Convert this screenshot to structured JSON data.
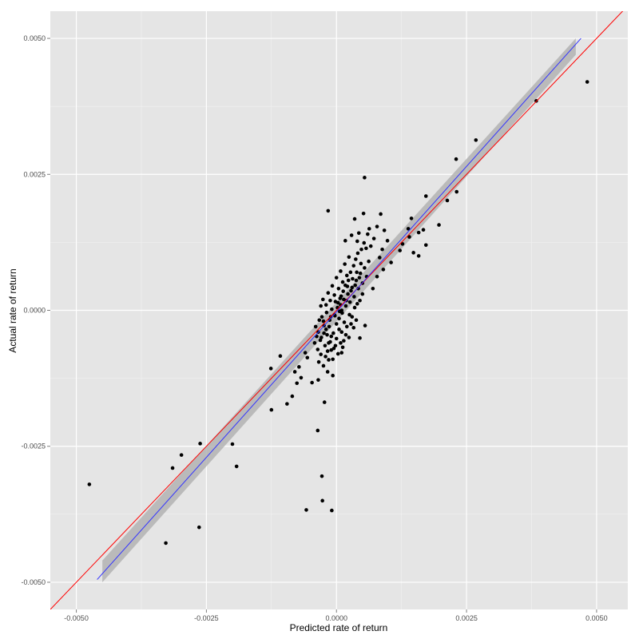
{
  "chart_data": {
    "type": "scatter",
    "title": "",
    "xlabel": "Predicted rate of return",
    "ylabel": "Actual rate of return",
    "xlim": [
      -0.0055,
      0.0056
    ],
    "ylim": [
      -0.0055,
      0.0055
    ],
    "x_ticks": [
      -0.005,
      -0.0025,
      0.0,
      0.0025,
      0.005
    ],
    "x_tick_labels": [
      "-0.0050",
      "-0.0025",
      "0.0000",
      "0.0025",
      "0.0050"
    ],
    "y_ticks": [
      -0.005,
      -0.0025,
      0.0,
      0.0025,
      0.005
    ],
    "y_tick_labels": [
      "-0.0050",
      "-0.0025",
      "0.0000",
      "0.0025",
      "0.0050"
    ],
    "grid": true,
    "reference_line": {
      "slope": 1,
      "intercept": 0,
      "color": "#ff0000"
    },
    "fit_line": {
      "x": [
        -0.0046,
        0.0047
      ],
      "y": [
        -0.00495,
        0.005
      ],
      "color": "#3333ff",
      "band_color": "#b3b3b3",
      "band": [
        {
          "x": -0.0045,
          "lower": -0.005,
          "upper": -0.0046
        },
        {
          "x": 0.0046,
          "lower": 0.0047,
          "upper": 0.005
        }
      ]
    },
    "points": [
      [
        -0.00475,
        -0.0032
      ],
      [
        -0.00328,
        -0.00428
      ],
      [
        -0.00315,
        -0.0029
      ],
      [
        -0.00298,
        -0.00266
      ],
      [
        -0.00264,
        -0.00399
      ],
      [
        -0.00262,
        -0.00245
      ],
      [
        -0.002,
        -0.00246
      ],
      [
        -0.00192,
        -0.00287
      ],
      [
        -0.00125,
        -0.00183
      ],
      [
        -0.00126,
        -0.00107
      ],
      [
        -0.00108,
        -0.00084
      ],
      [
        -0.00095,
        -0.00172
      ],
      [
        -0.00085,
        -0.00158
      ],
      [
        -0.00076,
        -0.00134
      ],
      [
        -0.00068,
        -0.00124
      ],
      [
        -0.0008,
        -0.00113
      ],
      [
        -0.00072,
        -0.00104
      ],
      [
        -0.0006,
        -0.00078
      ],
      [
        -0.00056,
        -0.00087
      ],
      [
        -0.00047,
        -0.00133
      ],
      [
        -0.00035,
        -0.00128
      ],
      [
        -0.00034,
        -0.00095
      ],
      [
        -0.0003,
        -0.00081
      ],
      [
        -0.00025,
        -0.00102
      ],
      [
        -0.00023,
        -0.00169
      ],
      [
        -0.00017,
        -0.00113
      ],
      [
        -0.00015,
        -0.00091
      ],
      [
        -0.0001,
        -0.00073
      ],
      [
        -7e-05,
        -0.0012
      ],
      [
        -0.00058,
        -0.00367
      ],
      [
        -0.00036,
        -0.00221
      ],
      [
        -0.00028,
        -0.00305
      ],
      [
        -0.00027,
        -0.0035
      ],
      [
        -9e-05,
        -0.00368
      ],
      [
        0.0001,
        -0.00078
      ],
      [
        0.00014,
        -0.00056
      ],
      [
        0.00045,
        -0.00051
      ],
      [
        0.00055,
        -0.00028
      ],
      [
        -0.00042,
        -0.0006
      ],
      [
        -0.00038,
        -0.00048
      ],
      [
        -0.0004,
        -0.0003
      ],
      [
        -0.00035,
        -0.0004
      ],
      [
        -0.00031,
        -0.00055
      ],
      [
        -0.00025,
        -0.0002
      ],
      [
        -0.00022,
        -0.00065
      ],
      [
        -0.00018,
        -0.00045
      ],
      [
        -0.00014,
        -0.0003
      ],
      [
        -0.00011,
        -0.00012
      ],
      [
        -6e-05,
        -0.00042
      ],
      [
        -4e-05,
        -8e-05
      ],
      [
        0.0,
        -0.00025
      ],
      [
        2e-05,
        5e-05
      ],
      [
        5e-05,
        -0.00015
      ],
      [
        8e-05,
        0.0001
      ],
      [
        0.00011,
        -5e-05
      ],
      [
        0.00014,
        0.0002
      ],
      [
        0.00018,
        8e-05
      ],
      [
        0.00022,
        0.0003
      ],
      [
        0.00026,
        0.00015
      ],
      [
        0.0003,
        0.00042
      ],
      [
        0.00034,
        0.00025
      ],
      [
        0.00038,
        0.00055
      ],
      [
        0.00042,
        0.0004
      ],
      [
        0.00046,
        0.00068
      ],
      [
        0.0005,
        0.0005
      ],
      [
        0.00054,
        0.00078
      ],
      [
        0.00058,
        0.00062
      ],
      [
        0.00062,
        0.0009
      ],
      [
        -0.0003,
        8e-05
      ],
      [
        -0.00026,
        0.0002
      ],
      [
        -0.0002,
        0.0001
      ],
      [
        -0.00016,
        0.00032
      ],
      [
        -0.00012,
        0.00018
      ],
      [
        -8e-05,
        0.00045
      ],
      [
        -4e-05,
        0.00028
      ],
      [
        0.0,
        0.0006
      ],
      [
        4e-05,
        0.0004
      ],
      [
        8e-05,
        0.00072
      ],
      [
        0.00012,
        0.00052
      ],
      [
        0.00016,
        0.00085
      ],
      [
        0.0002,
        0.00064
      ],
      [
        0.00024,
        0.00098
      ],
      [
        -0.0002,
        -0.00035
      ],
      [
        -0.00015,
        -0.0006
      ],
      [
        -0.0001,
        -0.00048
      ],
      [
        -5e-05,
        -0.0007
      ],
      [
        0.0,
        -0.00052
      ],
      [
        5e-05,
        -0.00035
      ],
      [
        0.0001,
        -0.0004
      ],
      [
        0.00015,
        -0.00022
      ],
      [
        0.0002,
        -0.0003
      ],
      [
        0.00025,
        -8e-05
      ],
      [
        0.0003,
        -0.00012
      ],
      [
        0.00035,
        5e-05
      ],
      [
        0.0004,
        0.00012
      ],
      [
        0.00045,
        0.00018
      ],
      [
        0.0005,
        0.0003
      ],
      [
        -0.00028,
        -0.00012
      ],
      [
        -0.00024,
        -0.00028
      ],
      [
        -0.00019,
        -4e-05
      ],
      [
        -0.00013,
        -0.00018
      ],
      [
        -9e-05,
        2e-05
      ],
      [
        -3e-05,
        -0.0001
      ],
      [
        3e-05,
        0.00014
      ],
      [
        7e-05,
        0.00022
      ],
      [
        0.00013,
        0.00035
      ],
      [
        0.00017,
        0.00046
      ],
      [
        0.00023,
        0.00055
      ],
      [
        0.00027,
        0.0007
      ],
      [
        0.00033,
        0.00082
      ],
      [
        0.00037,
        0.00094
      ],
      [
        0.00041,
        0.00105
      ],
      [
        0.00048,
        0.00112
      ],
      [
        0.00053,
        0.00124
      ],
      [
        0.0006,
        0.0014
      ],
      [
        0.00066,
        0.00118
      ],
      [
        0.00072,
        0.00132
      ],
      [
        0.00078,
        0.00154
      ],
      [
        0.00083,
        0.00097
      ],
      [
        0.00088,
        0.00112
      ],
      [
        0.00035,
        0.00168
      ],
      [
        0.00052,
        0.00178
      ],
      [
        0.00085,
        0.00177
      ],
      [
        0.00063,
        0.0015
      ],
      [
        0.00043,
        0.00142
      ],
      [
        0.00029,
        0.00138
      ],
      [
        0.00017,
        0.00128
      ],
      [
        0.0004,
        0.00127
      ],
      [
        0.00057,
        0.00114
      ],
      [
        0.00092,
        0.00147
      ],
      [
        0.00098,
        0.00128
      ],
      [
        0.00105,
        0.00088
      ],
      [
        0.0009,
        0.00075
      ],
      [
        0.00078,
        0.00062
      ],
      [
        0.0007,
        0.0004
      ],
      [
        -0.00016,
        0.00183
      ],
      [
        0.00054,
        0.00244
      ],
      [
        0.00144,
        0.00169
      ],
      [
        0.0014,
        0.00135
      ],
      [
        0.00138,
        0.0015
      ],
      [
        0.00158,
        0.00143
      ],
      [
        0.00167,
        0.00148
      ],
      [
        0.00127,
        0.00122
      ],
      [
        0.00122,
        0.0011
      ],
      [
        0.00148,
        0.00106
      ],
      [
        0.00158,
        0.001
      ],
      [
        0.00172,
        0.0012
      ],
      [
        0.00197,
        0.00157
      ],
      [
        0.00172,
        0.0021
      ],
      [
        0.00213,
        0.00202
      ],
      [
        0.0023,
        0.00278
      ],
      [
        0.00231,
        0.00218
      ],
      [
        0.00268,
        0.00313
      ],
      [
        0.00384,
        0.00385
      ],
      [
        0.00482,
        0.0042
      ],
      [
        0.0001,
        0.0
      ],
      [
        -2e-05,
        0.00016
      ],
      [
        6e-05,
        -2e-05
      ],
      [
        9e-05,
        0.00026
      ],
      [
        0.00019,
        0.00018
      ],
      [
        0.00021,
        0.00044
      ],
      [
        0.00028,
        0.00036
      ],
      [
        0.00031,
        0.00058
      ],
      [
        0.00036,
        0.00046
      ],
      [
        0.00039,
        0.0007
      ],
      [
        0.00044,
        0.0006
      ],
      [
        0.00047,
        0.00086
      ],
      [
        -0.00036,
        -0.00072
      ],
      [
        -0.00033,
        -0.00018
      ],
      [
        -0.00029,
        -0.0005
      ],
      [
        -0.00024,
        -0.00042
      ],
      [
        -0.00021,
        -0.00085
      ],
      [
        -0.00017,
        -0.00075
      ],
      [
        -0.00012,
        -0.00058
      ],
      [
        -7e-05,
        -0.0009
      ],
      [
        -2e-05,
        -0.00065
      ],
      [
        3e-05,
        -0.0008
      ],
      [
        8e-05,
        -0.0006
      ],
      [
        0.00012,
        -0.00068
      ],
      [
        0.00018,
        -0.00045
      ],
      [
        0.00024,
        -0.0005
      ],
      [
        0.00028,
        -0.00025
      ],
      [
        0.00033,
        -0.00032
      ],
      [
        0.00038,
        -0.00018
      ]
    ]
  }
}
